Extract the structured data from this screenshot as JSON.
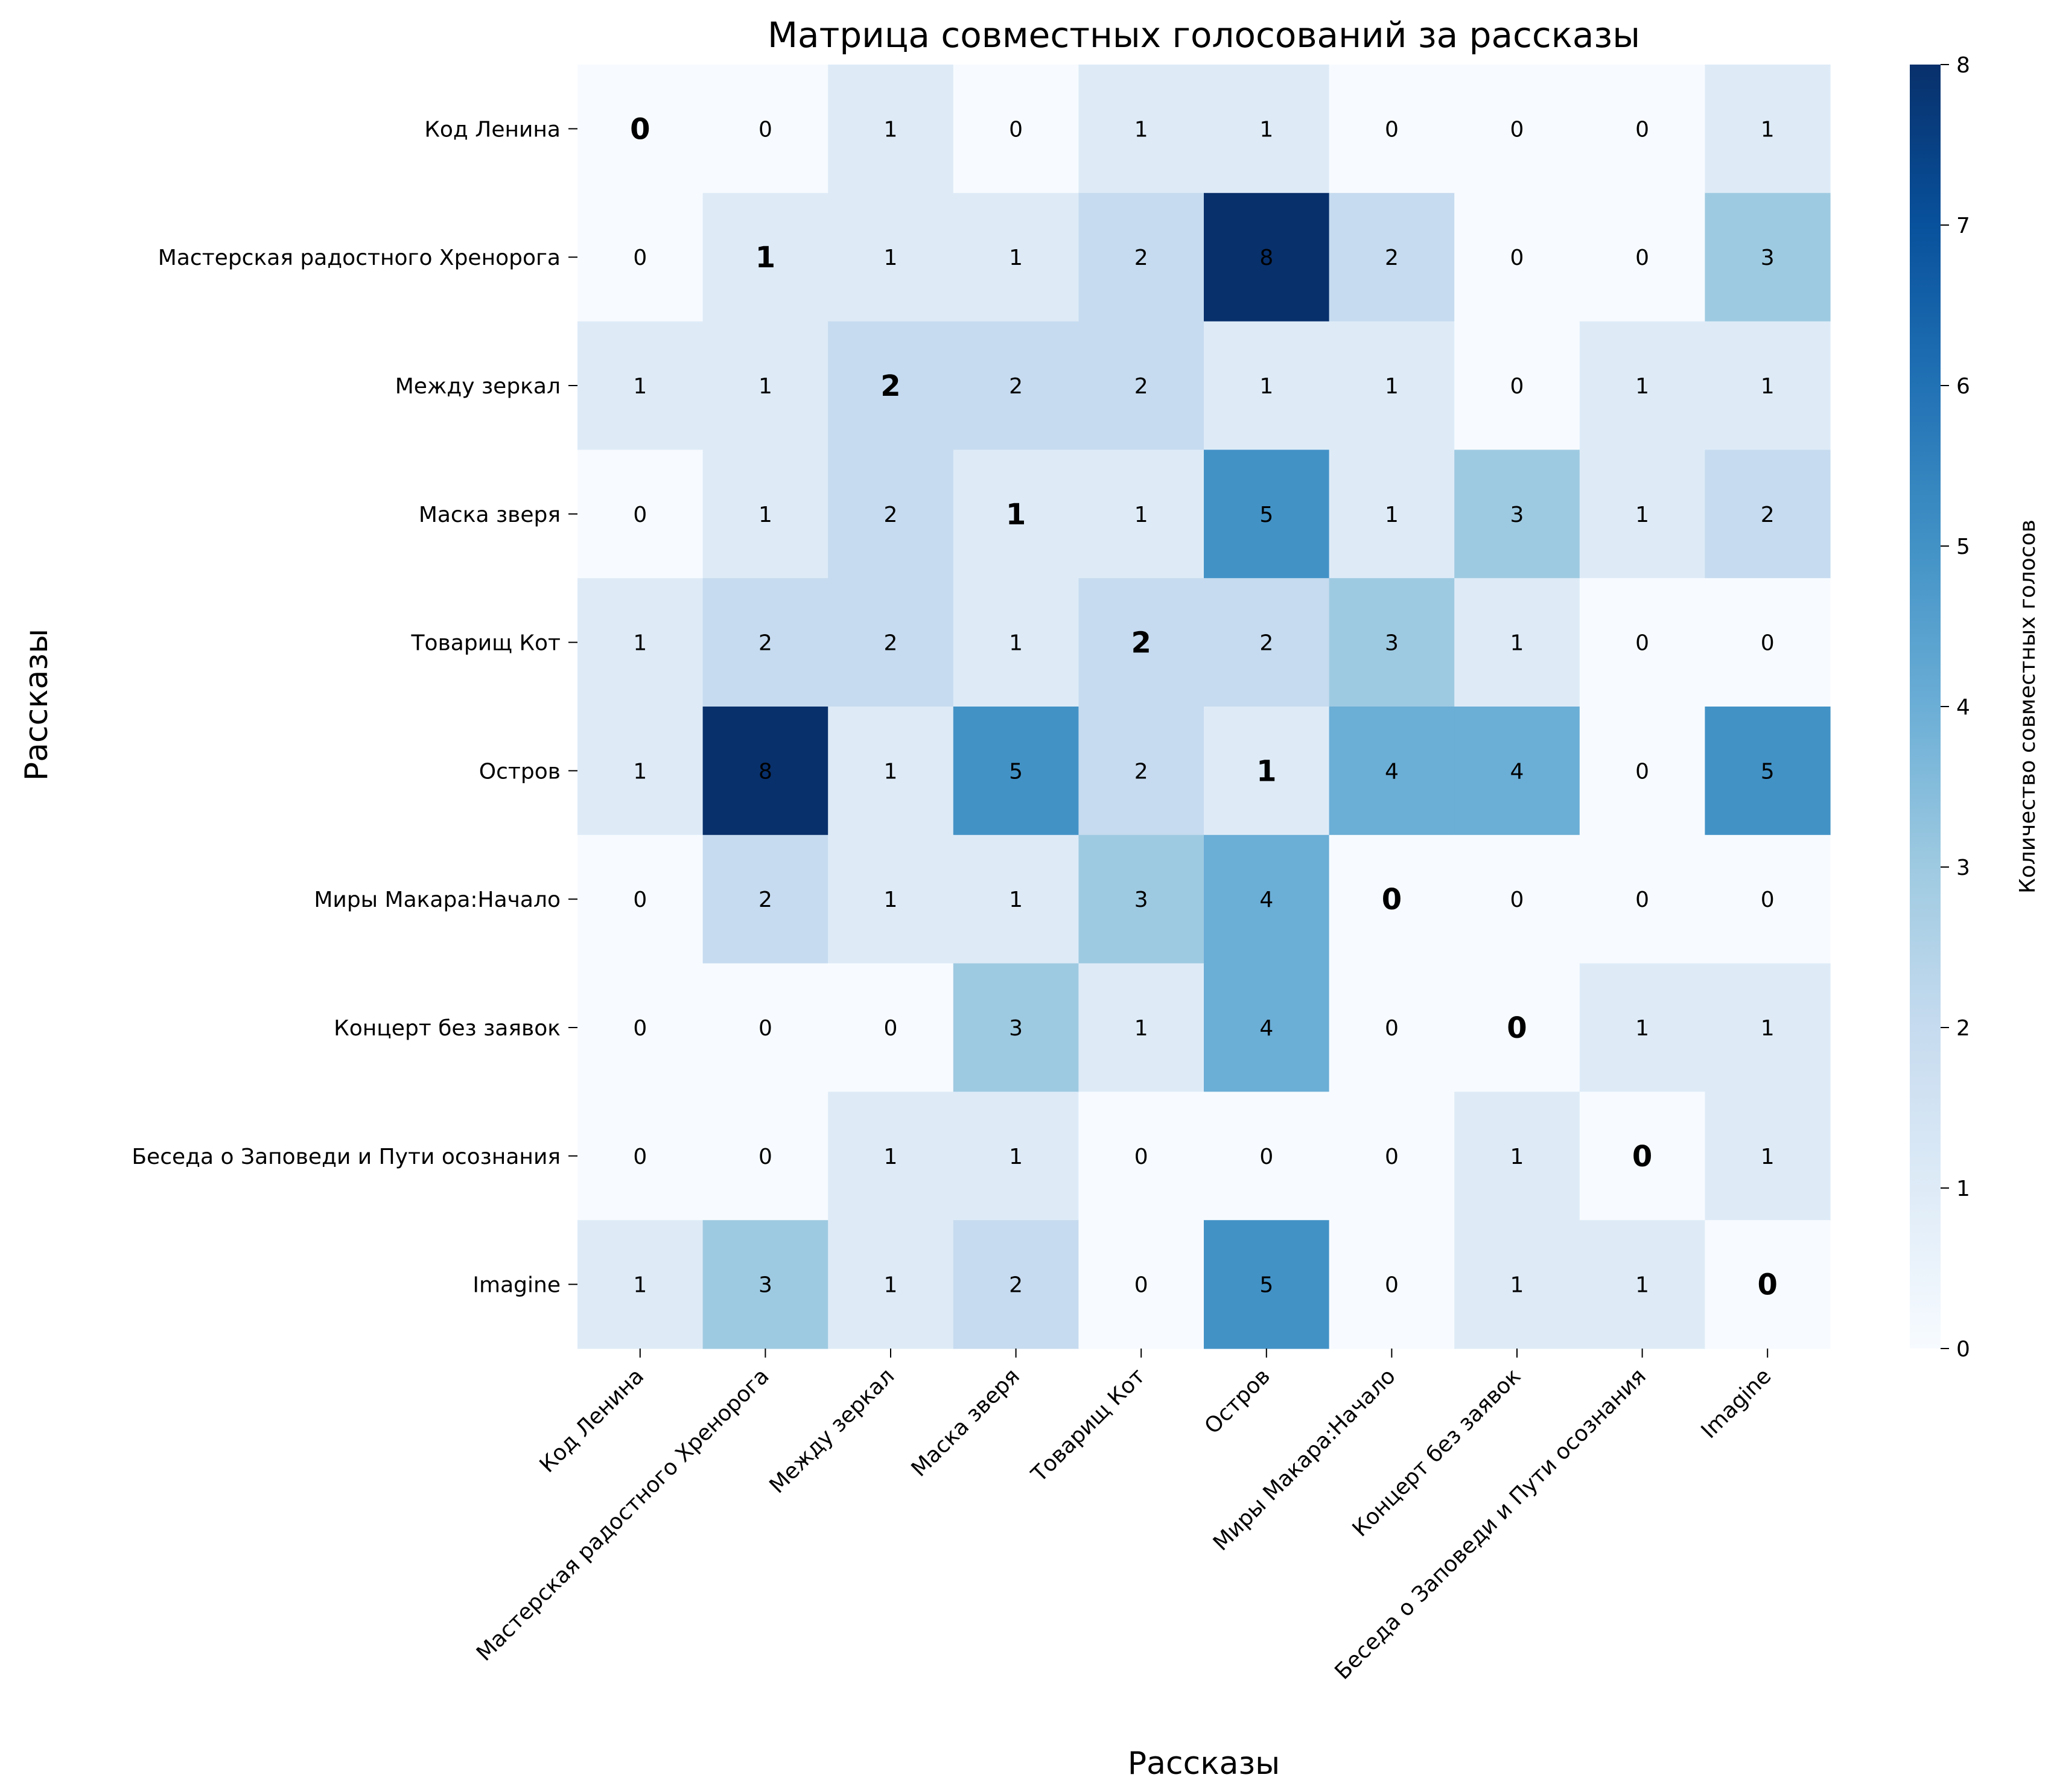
{
  "chart_data": {
    "type": "heatmap",
    "title": "Матрица совместных голосований за рассказы",
    "xlabel": "Рассказы",
    "ylabel": "Рассказы",
    "categories": [
      "Код Ленина",
      "Мастерская радостного Хренорога",
      "Между зеркал",
      "Маска зверя",
      "Товарищ Кот",
      "Остров",
      "Миры Макара:Начало",
      "Концерт без заявок",
      "Беседа о Заповеди и Пути осознания",
      "Imagine"
    ],
    "values": [
      [
        0,
        0,
        1,
        0,
        1,
        1,
        0,
        0,
        0,
        1
      ],
      [
        0,
        1,
        1,
        1,
        2,
        8,
        2,
        0,
        0,
        3
      ],
      [
        1,
        1,
        2,
        2,
        2,
        1,
        1,
        0,
        1,
        1
      ],
      [
        0,
        1,
        2,
        1,
        1,
        5,
        1,
        3,
        1,
        2
      ],
      [
        1,
        2,
        2,
        1,
        2,
        2,
        3,
        1,
        0,
        0
      ],
      [
        1,
        8,
        1,
        5,
        2,
        1,
        4,
        4,
        0,
        5
      ],
      [
        0,
        2,
        1,
        1,
        3,
        4,
        0,
        0,
        0,
        0
      ],
      [
        0,
        0,
        0,
        3,
        1,
        4,
        0,
        0,
        1,
        1
      ],
      [
        0,
        0,
        1,
        1,
        0,
        0,
        0,
        1,
        0,
        1
      ],
      [
        1,
        3,
        1,
        2,
        0,
        5,
        0,
        1,
        1,
        0
      ]
    ],
    "color_range": [
      0,
      8
    ],
    "colormap": "Blues",
    "colorbar_label": "Количество совместных голосов",
    "colorbar_ticks": [
      "0",
      "1",
      "2",
      "3",
      "4",
      "5",
      "6",
      "7",
      "8"
    ],
    "diagonal_highlight_color": "#FFA500",
    "grid": false
  }
}
